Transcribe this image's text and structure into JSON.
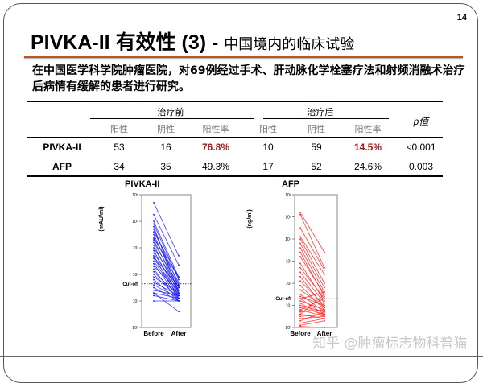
{
  "page_number": "14",
  "title": {
    "main": "PIVKA-II 有效性 (3) - ",
    "sub": "中国境内的临床试验"
  },
  "intro": "在中国医学科学院肿瘤医院，对69例经过手术、肝动脉化学栓塞疗法和射频消融术治疗后病情有缓解的患者进行研究。",
  "table": {
    "group_headers": [
      "治疗前",
      "治疗后"
    ],
    "p_header": "p值",
    "sub_headers": [
      "阳性",
      "阴性",
      "阳性率",
      "阳性",
      "阴性",
      "阳性率"
    ],
    "rows": [
      {
        "label": "PIVKA-II",
        "cells": [
          "53",
          "16",
          "76.8%",
          "10",
          "59",
          "14.5%",
          "<0.001"
        ]
      },
      {
        "label": "AFP",
        "cells": [
          "34",
          "35",
          "49.3%",
          "17",
          "52",
          "24.6%",
          "0.003"
        ]
      }
    ],
    "highlight_color": "#a01c1c"
  },
  "chart_data": [
    {
      "type": "line",
      "title": "PIVKA-II",
      "ylabel": "(mAU/ml)",
      "categories": [
        "Before",
        "After"
      ],
      "yscale": "log",
      "ylim": [
        1,
        100000
      ],
      "yticks": [
        "10⁰",
        "10¹",
        "10²",
        "10³",
        "10⁴",
        "10⁵"
      ],
      "cutoff": {
        "label": "Cut-off",
        "value": 44
      },
      "color": "#1a1aff",
      "pairs_log10": [
        [
          4.7,
          2.7
        ],
        [
          4.25,
          2.35
        ],
        [
          4.0,
          1.9
        ],
        [
          3.9,
          1.8
        ],
        [
          3.7,
          1.6
        ],
        [
          3.6,
          1.9
        ],
        [
          3.5,
          1.5
        ],
        [
          3.4,
          1.7
        ],
        [
          3.3,
          1.4
        ],
        [
          3.2,
          1.6
        ],
        [
          3.1,
          1.3
        ],
        [
          3.0,
          1.5
        ],
        [
          2.9,
          1.2
        ],
        [
          2.8,
          1.4
        ],
        [
          2.7,
          1.1
        ],
        [
          2.6,
          1.3
        ],
        [
          2.5,
          1.2
        ],
        [
          2.4,
          1.1
        ],
        [
          2.3,
          1.4
        ],
        [
          2.2,
          1.0
        ],
        [
          2.1,
          1.2
        ],
        [
          2.0,
          1.1
        ],
        [
          1.9,
          1.3
        ],
        [
          1.8,
          1.0
        ],
        [
          1.7,
          1.2
        ],
        [
          1.6,
          1.1
        ],
        [
          1.5,
          1.0
        ],
        [
          1.4,
          1.2
        ],
        [
          1.3,
          1.1
        ],
        [
          1.2,
          1.0
        ],
        [
          1.0,
          1.0
        ],
        [
          1.3,
          0.6
        ],
        [
          3.8,
          1.3
        ],
        [
          3.35,
          1.9
        ],
        [
          2.65,
          1.55
        ]
      ]
    },
    {
      "type": "line",
      "title": "AFP",
      "ylabel": "(ng/ml)",
      "categories": [
        "Before",
        "After"
      ],
      "yscale": "log",
      "ylim": [
        1,
        1000000
      ],
      "yticks": [
        "10⁰",
        "10¹",
        "10²",
        "10³",
        "10⁴",
        "10⁵",
        "10⁶"
      ],
      "cutoff": {
        "label": "Cut-off",
        "value": 20
      },
      "color": "#ff2020",
      "pairs_log10": [
        [
          5.2,
          3.4
        ],
        [
          5.1,
          2.7
        ],
        [
          4.5,
          2.6
        ],
        [
          4.1,
          2.4
        ],
        [
          4.0,
          2.0
        ],
        [
          3.8,
          1.8
        ],
        [
          3.6,
          1.6
        ],
        [
          3.4,
          1.4
        ],
        [
          3.2,
          1.5
        ],
        [
          2.9,
          1.2
        ],
        [
          2.7,
          1.3
        ],
        [
          2.5,
          1.1
        ],
        [
          2.3,
          0.9
        ],
        [
          2.1,
          1.0
        ],
        [
          1.9,
          0.8
        ],
        [
          1.7,
          0.9
        ],
        [
          1.5,
          0.7
        ],
        [
          1.4,
          1.0
        ],
        [
          1.3,
          0.6
        ],
        [
          1.2,
          0.8
        ],
        [
          1.1,
          0.5
        ],
        [
          1.0,
          0.7
        ],
        [
          0.9,
          0.6
        ],
        [
          0.8,
          0.5
        ],
        [
          0.7,
          0.8
        ],
        [
          0.6,
          0.4
        ],
        [
          0.5,
          0.6
        ],
        [
          0.4,
          0.5
        ],
        [
          0.3,
          0.7
        ],
        [
          0.2,
          0.4
        ],
        [
          0.1,
          0.3
        ],
        [
          0.05,
          0.0
        ],
        [
          0.8,
          1.3
        ],
        [
          0.6,
          1.5
        ],
        [
          1.3,
          1.6
        ]
      ]
    }
  ],
  "watermark": "知乎 @肿瘤标志物科普猫"
}
